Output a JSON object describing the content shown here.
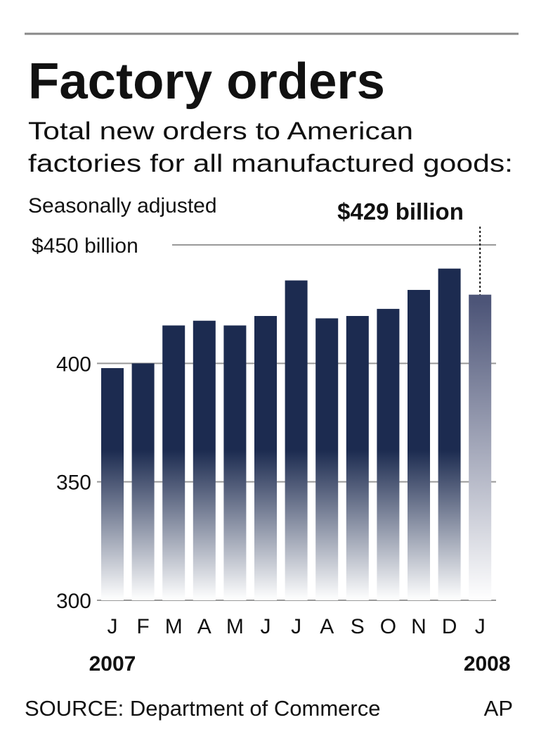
{
  "chart_data": {
    "type": "bar",
    "title": "Factory orders",
    "subtitle": [
      "Total new orders to American",
      "factories for all manufactured goods:"
    ],
    "note": "Seasonally adjusted",
    "annotation": "$429 billion",
    "categories": [
      "J",
      "F",
      "M",
      "A",
      "M",
      "J",
      "J",
      "A",
      "S",
      "O",
      "N",
      "D",
      "J"
    ],
    "x_group_labels": [
      "2007",
      null,
      null,
      null,
      null,
      null,
      null,
      null,
      null,
      null,
      null,
      null,
      "2008"
    ],
    "values": [
      398,
      400,
      416,
      418,
      416,
      420,
      435,
      419,
      420,
      423,
      431,
      440,
      429
    ],
    "color": "#1c2b50",
    "highlight_color": "#4d5578",
    "ylim": [
      300,
      450
    ],
    "yticks": [
      300,
      350,
      400,
      {
        "value": 450,
        "label": "$450 billion"
      }
    ],
    "grid": true,
    "source": "SOURCE: Department of Commerce",
    "credit": "AP"
  }
}
